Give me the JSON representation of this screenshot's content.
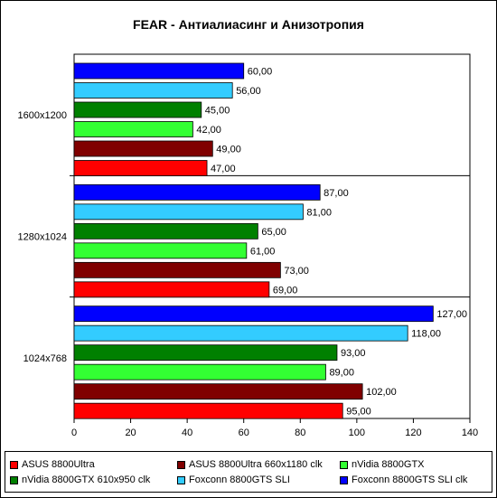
{
  "chart_data": {
    "type": "bar",
    "orientation": "horizontal",
    "title": "FEAR - Антиалиасинг и Анизотропия",
    "xlabel": "",
    "ylabel": "",
    "xlim": [
      0,
      140
    ],
    "x_ticks": [
      "0",
      "20",
      "40",
      "60",
      "80",
      "100",
      "120",
      "140"
    ],
    "categories": [
      "1600x1200",
      "1280x1024",
      "1024x768"
    ],
    "series": [
      {
        "name": "ASUS 8800Ultra",
        "color": "#ff0000",
        "values": [
          47,
          69,
          95
        ],
        "labels": [
          "47,00",
          "69,00",
          "95,00"
        ]
      },
      {
        "name": "ASUS 8800Ultra 660x1180 clk",
        "color": "#800000",
        "values": [
          49,
          73,
          102
        ],
        "labels": [
          "49,00",
          "73,00",
          "102,00"
        ]
      },
      {
        "name": "nVidia 8800GTX",
        "color": "#33ff33",
        "values": [
          42,
          61,
          89
        ],
        "labels": [
          "42,00",
          "61,00",
          "89,00"
        ]
      },
      {
        "name": "nVidia 8800GTX 610x950 clk",
        "color": "#008000",
        "values": [
          45,
          65,
          93
        ],
        "labels": [
          "45,00",
          "65,00",
          "93,00"
        ]
      },
      {
        "name": "Foxconn 8800GTS SLI",
        "color": "#33ccff",
        "values": [
          56,
          81,
          118
        ],
        "labels": [
          "56,00",
          "81,00",
          "118,00"
        ]
      },
      {
        "name": "Foxconn 8800GTS SLI clk",
        "color": "#0000ff",
        "values": [
          60,
          87,
          127
        ],
        "labels": [
          "60,00",
          "87,00",
          "127,00"
        ]
      }
    ],
    "grid": false,
    "legend_position": "bottom"
  }
}
